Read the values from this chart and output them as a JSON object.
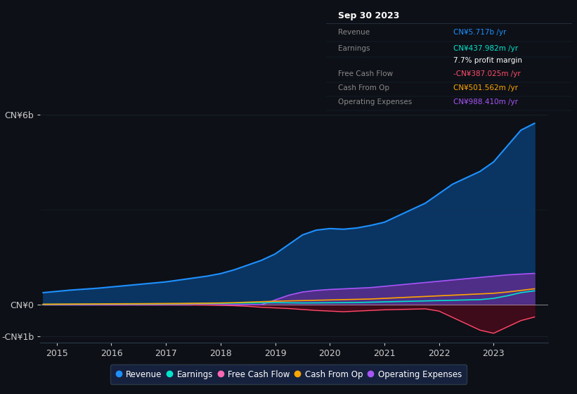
{
  "background_color": "#0d1117",
  "plot_bg_color": "#0d1117",
  "title_box_date": "Sep 30 2023",
  "ylabel_top": "CN¥6b",
  "ylabel_zero": "CN¥0",
  "ylabel_neg": "-CN¥1b",
  "ylim": [
    -1200000000,
    6500000000
  ],
  "legend": [
    {
      "label": "Revenue",
      "color": "#1e90ff"
    },
    {
      "label": "Earnings",
      "color": "#00e5cc"
    },
    {
      "label": "Free Cash Flow",
      "color": "#ff69b4"
    },
    {
      "label": "Cash From Op",
      "color": "#ffa500"
    },
    {
      "label": "Operating Expenses",
      "color": "#a855f7"
    }
  ],
  "rows_data": [
    {
      "label": "Revenue",
      "value": "CN¥5.717b /yr",
      "value_color": "#1e90ff"
    },
    {
      "label": "Earnings",
      "value": "CN¥437.982m /yr",
      "value_color": "#00e5cc"
    },
    {
      "label": "",
      "value": "7.7% profit margin",
      "value_color": "#ffffff"
    },
    {
      "label": "Free Cash Flow",
      "value": "-CN¥387.025m /yr",
      "value_color": "#ff4c6a"
    },
    {
      "label": "Cash From Op",
      "value": "CN¥501.562m /yr",
      "value_color": "#ffa500"
    },
    {
      "label": "Operating Expenses",
      "value": "CN¥988.410m /yr",
      "value_color": "#a855f7"
    }
  ],
  "years": [
    2014.75,
    2015,
    2015.25,
    2015.5,
    2015.75,
    2016,
    2016.25,
    2016.5,
    2016.75,
    2017,
    2017.25,
    2017.5,
    2017.75,
    2018,
    2018.25,
    2018.5,
    2018.75,
    2019,
    2019.25,
    2019.5,
    2019.75,
    2020,
    2020.25,
    2020.5,
    2020.75,
    2021,
    2021.25,
    2021.5,
    2021.75,
    2022,
    2022.25,
    2022.5,
    2022.75,
    2023,
    2023.25,
    2023.5,
    2023.75
  ],
  "revenue": [
    380000000.0,
    420000000.0,
    460000000.0,
    490000000.0,
    520000000.0,
    560000000.0,
    600000000.0,
    640000000.0,
    680000000.0,
    720000000.0,
    780000000.0,
    840000000.0,
    900000000.0,
    980000000.0,
    1100000000.0,
    1250000000.0,
    1400000000.0,
    1600000000.0,
    1900000000.0,
    2200000000.0,
    2350000000.0,
    2400000000.0,
    2380000000.0,
    2420000000.0,
    2500000000.0,
    2600000000.0,
    2800000000.0,
    3000000000.0,
    3200000000.0,
    3500000000.0,
    3800000000.0,
    4000000000.0,
    4200000000.0,
    4500000000.0,
    5000000000.0,
    5500000000.0,
    5717000000.0
  ],
  "earnings": [
    10000000.0,
    12000000.0,
    14000000.0,
    16000000.0,
    18000000.0,
    20000000.0,
    22000000.0,
    24000000.0,
    25000000.0,
    28000000.0,
    30000000.0,
    35000000.0,
    38000000.0,
    42000000.0,
    50000000.0,
    55000000.0,
    60000000.0,
    65000000.0,
    60000000.0,
    55000000.0,
    58000000.0,
    62000000.0,
    65000000.0,
    70000000.0,
    80000000.0,
    90000000.0,
    100000000.0,
    110000000.0,
    120000000.0,
    130000000.0,
    140000000.0,
    150000000.0,
    160000000.0,
    200000000.0,
    280000000.0,
    380000000.0,
    438000000.0
  ],
  "free_cash": [
    5000000.0,
    8000000.0,
    10000000.0,
    12000000.0,
    10000000.0,
    8000000.0,
    6000000.0,
    5000000.0,
    3000000.0,
    2000000.0,
    0,
    -5000000.0,
    -10000000.0,
    -20000000.0,
    -30000000.0,
    -50000000.0,
    -80000000.0,
    -100000000.0,
    -120000000.0,
    -150000000.0,
    -180000000.0,
    -200000000.0,
    -220000000.0,
    -200000000.0,
    -180000000.0,
    -160000000.0,
    -150000000.0,
    -140000000.0,
    -130000000.0,
    -200000000.0,
    -400000000.0,
    -600000000.0,
    -800000000.0,
    -900000000.0,
    -700000000.0,
    -500000000.0,
    -387000000.0
  ],
  "cash_from_op": [
    15000000.0,
    18000000.0,
    20000000.0,
    22000000.0,
    25000000.0,
    28000000.0,
    30000000.0,
    32000000.0,
    35000000.0,
    38000000.0,
    40000000.0,
    45000000.0,
    50000000.0,
    55000000.0,
    65000000.0,
    80000000.0,
    95000000.0,
    110000000.0,
    120000000.0,
    130000000.0,
    140000000.0,
    150000000.0,
    160000000.0,
    170000000.0,
    180000000.0,
    200000000.0,
    220000000.0,
    240000000.0,
    260000000.0,
    280000000.0,
    300000000.0,
    320000000.0,
    340000000.0,
    360000000.0,
    400000000.0,
    450000000.0,
    502000000.0
  ],
  "op_expenses": [
    0,
    0,
    0,
    0,
    0,
    0,
    0,
    0,
    0,
    0,
    0,
    0,
    0,
    0,
    0,
    0,
    0,
    150000000.0,
    300000000.0,
    400000000.0,
    450000000.0,
    480000000.0,
    500000000.0,
    520000000.0,
    540000000.0,
    580000000.0,
    620000000.0,
    660000000.0,
    700000000.0,
    740000000.0,
    780000000.0,
    820000000.0,
    860000000.0,
    900000000.0,
    940000000.0,
    965000000.0,
    988000000.0
  ]
}
